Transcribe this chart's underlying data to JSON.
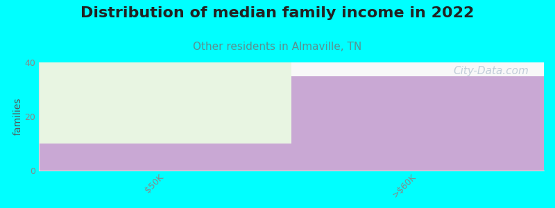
{
  "title": "Distribution of median family income in 2022",
  "subtitle": "Other residents in Almaville, TN",
  "categories": [
    "$50K",
    ">$60K"
  ],
  "bar_purple": [
    10,
    35
  ],
  "bar_green": [
    30,
    0
  ],
  "purple_color": "#c9a8d4",
  "green_color": "#e8f5e2",
  "background_color": "#00ffff",
  "axes_bg_color": "#f8f8f8",
  "ylabel": "families",
  "ylim": [
    0,
    40
  ],
  "yticks": [
    0,
    20,
    40
  ],
  "title_fontsize": 16,
  "subtitle_fontsize": 11,
  "subtitle_color": "#5a9090",
  "title_color": "#222222",
  "watermark": "City-Data.com",
  "watermark_color": "#aabbcc",
  "watermark_fontsize": 11,
  "tick_label_color": "#888888",
  "tick_label_fontsize": 9
}
